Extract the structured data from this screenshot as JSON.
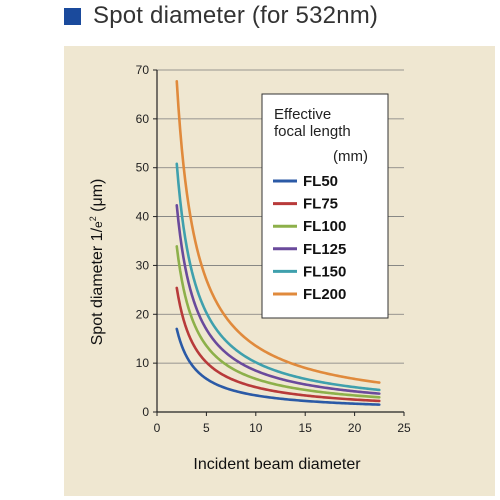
{
  "header": {
    "title": "Spot diameter (for 532nm)"
  },
  "chart_data": {
    "type": "line",
    "title": "Spot diameter (for 532nm)",
    "xlabel": "Incident beam diameter",
    "ylabel_main": "Spot diameter 1/",
    "ylabel_small": "e",
    "ylabel_sup": "2",
    "ylabel_unit": " (μm)",
    "xlim": [
      0,
      25
    ],
    "ylim": [
      0,
      70
    ],
    "x_ticks": [
      "0",
      "5",
      "10",
      "15",
      "20",
      "25"
    ],
    "y_ticks": [
      "0",
      "10",
      "20",
      "30",
      "40",
      "50",
      "60",
      "70"
    ],
    "grid": true,
    "legend_title": [
      "Effective",
      "focal length"
    ],
    "legend_unit": "(mm)",
    "legend_position": "top-right",
    "series": [
      {
        "name": "FL50",
        "color": "#2b5aa6",
        "x": [
          2,
          2.5,
          3,
          4,
          5,
          6,
          8,
          10,
          12,
          15,
          18,
          22.5
        ],
        "y": [
          17.0,
          13.6,
          11.3,
          8.5,
          6.8,
          5.7,
          4.2,
          3.4,
          2.8,
          2.3,
          1.9,
          1.5
        ]
      },
      {
        "name": "FL75",
        "color": "#b83a3a",
        "x": [
          2,
          2.5,
          3,
          4,
          5,
          6,
          8,
          10,
          12,
          15,
          18,
          22.5
        ],
        "y": [
          25.4,
          20.3,
          16.9,
          12.7,
          10.2,
          8.5,
          6.4,
          5.1,
          4.2,
          3.4,
          2.8,
          2.3
        ]
      },
      {
        "name": "FL100",
        "color": "#8db04a",
        "x": [
          2,
          2.5,
          3,
          4,
          5,
          6,
          8,
          10,
          12,
          15,
          18,
          22.5
        ],
        "y": [
          33.9,
          27.1,
          22.6,
          16.9,
          13.5,
          11.3,
          8.5,
          6.8,
          5.6,
          4.5,
          3.8,
          3.0
        ]
      },
      {
        "name": "FL125",
        "color": "#6a4a9c",
        "x": [
          2,
          2.5,
          3,
          4,
          5,
          6,
          8,
          10,
          12,
          15,
          18,
          22.5
        ],
        "y": [
          42.3,
          33.9,
          28.2,
          21.2,
          16.9,
          14.1,
          10.6,
          8.5,
          7.1,
          5.6,
          4.7,
          3.8
        ]
      },
      {
        "name": "FL150",
        "color": "#3fa0ad",
        "x": [
          2,
          2.5,
          3,
          4,
          5,
          6,
          8,
          10,
          12,
          15,
          18,
          22.5
        ],
        "y": [
          50.8,
          40.6,
          33.9,
          25.4,
          20.3,
          16.9,
          12.7,
          10.2,
          8.5,
          6.8,
          5.6,
          4.5
        ]
      },
      {
        "name": "FL200",
        "color": "#e08a3c",
        "x": [
          2,
          2.5,
          3,
          4,
          5,
          6,
          8,
          10,
          12,
          15,
          18,
          22.5
        ],
        "y": [
          67.7,
          54.2,
          45.2,
          33.9,
          27.1,
          22.6,
          16.9,
          13.5,
          11.3,
          9.0,
          7.5,
          6.0
        ]
      }
    ]
  }
}
